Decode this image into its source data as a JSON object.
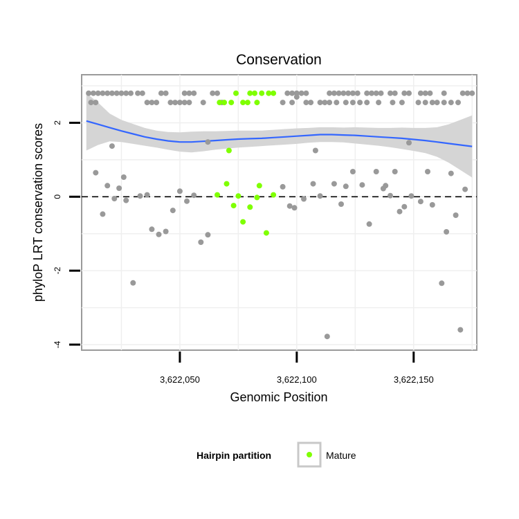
{
  "chart_data": {
    "type": "scatter",
    "title": "Conservation",
    "xlabel": "Genomic Position",
    "ylabel": "phyloP LRT conservation scores",
    "xlim": [
      3622008,
      3622177
    ],
    "ylim": [
      -4.15,
      3.3
    ],
    "x_ticks": [
      3622050,
      3622100,
      3622150
    ],
    "x_tick_labels": [
      "3,622,050",
      "3,622,100",
      "3,622,150"
    ],
    "y_ticks": [
      -4,
      -2,
      0,
      2
    ],
    "y_tick_labels": [
      "-4",
      "-2",
      "0",
      "2"
    ],
    "reference_line": {
      "y": 0,
      "style": "dashed"
    },
    "legend": {
      "title": "Hairpin partition",
      "position": "bottom",
      "entries": [
        {
          "label": "Mature",
          "color": "#7FFF00"
        }
      ]
    },
    "colors": {
      "other": "#999999",
      "mature": "#7FFF00",
      "smooth": "#3366FF",
      "ribbon": "#D3D3D3"
    },
    "series": [
      {
        "name": "Other",
        "points": [
          [
            3622011,
            2.8
          ],
          [
            3622013,
            2.8
          ],
          [
            3622015,
            2.8
          ],
          [
            3622017,
            2.8
          ],
          [
            3622019,
            2.8
          ],
          [
            3622021,
            2.8
          ],
          [
            3622023,
            2.8
          ],
          [
            3622025,
            2.8
          ],
          [
            3622027,
            2.8
          ],
          [
            3622029,
            2.8
          ],
          [
            3622032,
            2.8
          ],
          [
            3622034,
            2.8
          ],
          [
            3622042,
            2.8
          ],
          [
            3622044,
            2.8
          ],
          [
            3622052,
            2.8
          ],
          [
            3622054,
            2.8
          ],
          [
            3622056,
            2.8
          ],
          [
            3622064,
            2.8
          ],
          [
            3622066,
            2.8
          ],
          [
            3622096,
            2.8
          ],
          [
            3622098,
            2.8
          ],
          [
            3622100,
            2.8
          ],
          [
            3622102,
            2.8
          ],
          [
            3622104,
            2.8
          ],
          [
            3622114,
            2.8
          ],
          [
            3622116,
            2.8
          ],
          [
            3622118,
            2.8
          ],
          [
            3622120,
            2.8
          ],
          [
            3622122,
            2.8
          ],
          [
            3622124,
            2.8
          ],
          [
            3622126,
            2.8
          ],
          [
            3622130,
            2.8
          ],
          [
            3622132,
            2.8
          ],
          [
            3622134,
            2.8
          ],
          [
            3622136,
            2.8
          ],
          [
            3622140,
            2.8
          ],
          [
            3622142,
            2.8
          ],
          [
            3622146,
            2.8
          ],
          [
            3622148,
            2.8
          ],
          [
            3622153,
            2.8
          ],
          [
            3622155,
            2.8
          ],
          [
            3622157,
            2.8
          ],
          [
            3622163,
            2.8
          ],
          [
            3622171,
            2.8
          ],
          [
            3622173,
            2.8
          ],
          [
            3622175,
            2.8
          ],
          [
            3622012,
            2.55
          ],
          [
            3622014,
            2.55
          ],
          [
            3622036,
            2.55
          ],
          [
            3622038,
            2.55
          ],
          [
            3622040,
            2.55
          ],
          [
            3622046,
            2.55
          ],
          [
            3622048,
            2.55
          ],
          [
            3622050,
            2.55
          ],
          [
            3622052,
            2.55
          ],
          [
            3622054,
            2.55
          ],
          [
            3622060,
            2.55
          ],
          [
            3622068,
            2.55
          ],
          [
            3622094,
            2.55
          ],
          [
            3622098,
            2.55
          ],
          [
            3622104,
            2.55
          ],
          [
            3622106,
            2.55
          ],
          [
            3622110,
            2.55
          ],
          [
            3622112,
            2.55
          ],
          [
            3622114,
            2.55
          ],
          [
            3622117,
            2.55
          ],
          [
            3622121,
            2.55
          ],
          [
            3622124,
            2.55
          ],
          [
            3622127,
            2.55
          ],
          [
            3622130,
            2.55
          ],
          [
            3622135,
            2.55
          ],
          [
            3622141,
            2.55
          ],
          [
            3622145,
            2.55
          ],
          [
            3622152,
            2.55
          ],
          [
            3622155,
            2.55
          ],
          [
            3622158,
            2.55
          ],
          [
            3622160,
            2.55
          ],
          [
            3622163,
            2.55
          ],
          [
            3622166,
            2.55
          ],
          [
            3622169,
            2.55
          ],
          [
            3622100,
            2.7
          ],
          [
            3622021,
            1.37
          ],
          [
            3622062,
            1.48
          ],
          [
            3622108,
            1.25
          ],
          [
            3622148,
            1.46
          ],
          [
            3622014,
            0.65
          ],
          [
            3622017,
            -0.47
          ],
          [
            3622019,
            0.3
          ],
          [
            3622022,
            -0.05
          ],
          [
            3622024,
            0.23
          ],
          [
            3622026,
            0.53
          ],
          [
            3622027,
            -0.1
          ],
          [
            3622030,
            -2.33
          ],
          [
            3622033,
            0.02
          ],
          [
            3622036,
            0.05
          ],
          [
            3622038,
            -0.88
          ],
          [
            3622041,
            -1.02
          ],
          [
            3622044,
            -0.94
          ],
          [
            3622047,
            -0.37
          ],
          [
            3622050,
            0.15
          ],
          [
            3622053,
            -0.12
          ],
          [
            3622056,
            0.04
          ],
          [
            3622059,
            -1.23
          ],
          [
            3622062,
            -1.03
          ],
          [
            3622094,
            0.27
          ],
          [
            3622097,
            -0.25
          ],
          [
            3622099,
            -0.3
          ],
          [
            3622103,
            -0.06
          ],
          [
            3622107,
            0.35
          ],
          [
            3622110,
            0.02
          ],
          [
            3622113,
            -3.78
          ],
          [
            3622116,
            0.35
          ],
          [
            3622119,
            -0.2
          ],
          [
            3622121,
            0.28
          ],
          [
            3622124,
            0.68
          ],
          [
            3622128,
            0.32
          ],
          [
            3622131,
            -0.74
          ],
          [
            3622134,
            0.68
          ],
          [
            3622137,
            0.22
          ],
          [
            3622138,
            0.3
          ],
          [
            3622140,
            0.03
          ],
          [
            3622142,
            0.68
          ],
          [
            3622144,
            -0.4
          ],
          [
            3622146,
            -0.27
          ],
          [
            3622149,
            0.02
          ],
          [
            3622153,
            -0.13
          ],
          [
            3622156,
            0.68
          ],
          [
            3622158,
            -0.22
          ],
          [
            3622162,
            -2.34
          ],
          [
            3622164,
            -0.95
          ],
          [
            3622166,
            0.63
          ],
          [
            3622168,
            -0.5
          ],
          [
            3622170,
            -3.6
          ],
          [
            3622172,
            0.2
          ]
        ]
      },
      {
        "name": "Mature",
        "points": [
          [
            3622067,
            2.55
          ],
          [
            3622069,
            2.55
          ],
          [
            3622072,
            2.55
          ],
          [
            3622077,
            2.55
          ],
          [
            3622079,
            2.55
          ],
          [
            3622083,
            2.55
          ],
          [
            3622074,
            2.8
          ],
          [
            3622080,
            2.8
          ],
          [
            3622082,
            2.8
          ],
          [
            3622085,
            2.8
          ],
          [
            3622088,
            2.8
          ],
          [
            3622090,
            2.8
          ],
          [
            3622071,
            1.25
          ],
          [
            3622070,
            0.35
          ],
          [
            3622066,
            0.05
          ],
          [
            3622073,
            -0.24
          ],
          [
            3622075,
            0.02
          ],
          [
            3622077,
            -0.68
          ],
          [
            3622080,
            -0.28
          ],
          [
            3622083,
            -0.02
          ],
          [
            3622084,
            0.3
          ],
          [
            3622087,
            -0.98
          ],
          [
            3622090,
            0.05
          ]
        ]
      }
    ],
    "smooth": {
      "x": [
        3622010,
        3622015,
        3622020,
        3622025,
        3622030,
        3622035,
        3622040,
        3622045,
        3622050,
        3622055,
        3622060,
        3622065,
        3622070,
        3622075,
        3622080,
        3622085,
        3622090,
        3622095,
        3622100,
        3622105,
        3622110,
        3622115,
        3622120,
        3622125,
        3622130,
        3622135,
        3622140,
        3622145,
        3622150,
        3622155,
        3622160,
        3622165,
        3622170,
        3622175
      ],
      "y": [
        2.05,
        1.96,
        1.87,
        1.78,
        1.7,
        1.62,
        1.56,
        1.51,
        1.48,
        1.48,
        1.5,
        1.52,
        1.54,
        1.56,
        1.57,
        1.58,
        1.6,
        1.62,
        1.64,
        1.66,
        1.68,
        1.68,
        1.67,
        1.66,
        1.64,
        1.62,
        1.6,
        1.58,
        1.55,
        1.52,
        1.48,
        1.44,
        1.4,
        1.36
      ],
      "lower": [
        1.25,
        1.4,
        1.5,
        1.48,
        1.43,
        1.38,
        1.33,
        1.27,
        1.22,
        1.2,
        1.23,
        1.27,
        1.3,
        1.33,
        1.35,
        1.37,
        1.39,
        1.41,
        1.43,
        1.46,
        1.48,
        1.48,
        1.47,
        1.44,
        1.41,
        1.38,
        1.34,
        1.29,
        1.24,
        1.18,
        1.08,
        0.92,
        0.72,
        0.52
      ],
      "upper": [
        2.8,
        2.55,
        2.25,
        2.08,
        1.97,
        1.86,
        1.79,
        1.75,
        1.74,
        1.76,
        1.77,
        1.77,
        1.78,
        1.79,
        1.79,
        1.79,
        1.81,
        1.83,
        1.85,
        1.86,
        1.88,
        1.88,
        1.87,
        1.88,
        1.87,
        1.86,
        1.86,
        1.87,
        1.86,
        1.86,
        1.88,
        1.96,
        2.08,
        2.2
      ]
    }
  }
}
